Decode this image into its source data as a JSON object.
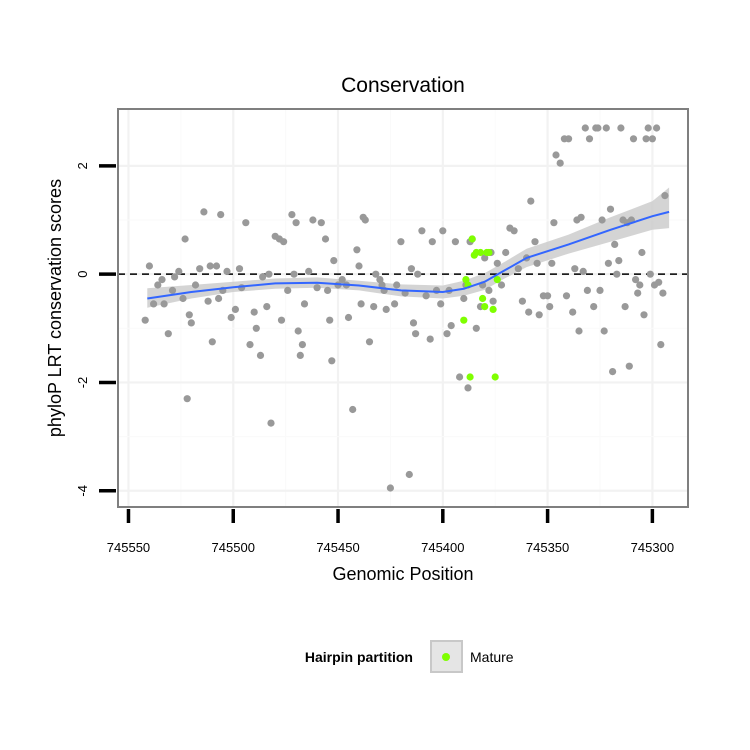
{
  "chart_data": {
    "type": "scatter",
    "title": "Conservation",
    "xlabel": "Genomic Position",
    "ylabel": "phyloP LRT conservation scores",
    "x_reversed": true,
    "xlim": [
      745555,
      745283
    ],
    "ylim": [
      -4.3,
      3.05
    ],
    "x_ticks": [
      745550,
      745500,
      745450,
      745400,
      745350,
      745300
    ],
    "x_tick_labels": [
      "745550",
      "745500",
      "745450",
      "745400",
      "745350",
      "745300"
    ],
    "y_ticks": [
      2,
      0,
      -2,
      -4
    ],
    "y_tick_labels": [
      "2",
      "0",
      "-2",
      "-4"
    ],
    "reference_line": {
      "y": 0,
      "style": "dashed"
    },
    "grid": true,
    "colors": {
      "point_other": "#999999",
      "point_mature": "#7fff00",
      "smooth_line": "#3366ff",
      "ribbon": "#cccccc",
      "panel_border": "#7f7f7f",
      "grid": "#f2f2f2"
    },
    "legend": {
      "title": "Hairpin partition",
      "placement": "bottom",
      "entries": [
        {
          "label": "Mature",
          "color": "#7fff00"
        }
      ]
    },
    "smooth": {
      "x": [
        745541,
        745520,
        745500,
        745480,
        745460,
        745440,
        745420,
        745400,
        745390,
        745380,
        745370,
        745360,
        745340,
        745320,
        745300,
        745292
      ],
      "y": [
        -0.45,
        -0.33,
        -0.24,
        -0.17,
        -0.16,
        -0.21,
        -0.3,
        -0.33,
        -0.27,
        -0.14,
        0.08,
        0.3,
        0.55,
        0.82,
        1.07,
        1.15
      ],
      "lower": [
        -0.62,
        -0.45,
        -0.33,
        -0.27,
        -0.25,
        -0.3,
        -0.41,
        -0.45,
        -0.4,
        -0.29,
        -0.07,
        0.13,
        0.38,
        0.6,
        0.82,
        0.85
      ],
      "upper": [
        -0.26,
        -0.2,
        -0.14,
        -0.08,
        -0.06,
        -0.12,
        -0.19,
        -0.21,
        -0.12,
        0.02,
        0.24,
        0.47,
        0.73,
        1.05,
        1.35,
        1.6
      ]
    },
    "series": [
      {
        "name": "Other",
        "color": "#999999",
        "points": [
          [
            745542,
            -0.85
          ],
          [
            745540,
            0.15
          ],
          [
            745538,
            -0.55
          ],
          [
            745536,
            -0.2
          ],
          [
            745534,
            -0.1
          ],
          [
            745533,
            -0.55
          ],
          [
            745531,
            -1.1
          ],
          [
            745529,
            -0.3
          ],
          [
            745528,
            -0.05
          ],
          [
            745526,
            0.05
          ],
          [
            745524,
            -0.45
          ],
          [
            745523,
            0.65
          ],
          [
            745522,
            -2.3
          ],
          [
            745521,
            -0.75
          ],
          [
            745520,
            -0.9
          ],
          [
            745518,
            -0.2
          ],
          [
            745516,
            0.1
          ],
          [
            745514,
            1.15
          ],
          [
            745512,
            -0.5
          ],
          [
            745511,
            0.15
          ],
          [
            745510,
            -1.25
          ],
          [
            745508,
            0.15
          ],
          [
            745507,
            -0.45
          ],
          [
            745506,
            1.1
          ],
          [
            745505,
            -0.3
          ],
          [
            745503,
            0.05
          ],
          [
            745501,
            -0.8
          ],
          [
            745499,
            -0.65
          ],
          [
            745497,
            0.1
          ],
          [
            745496,
            -0.25
          ],
          [
            745494,
            0.95
          ],
          [
            745492,
            -1.3
          ],
          [
            745490,
            -0.7
          ],
          [
            745489,
            -1.0
          ],
          [
            745487,
            -1.5
          ],
          [
            745486,
            -0.05
          ],
          [
            745484,
            -0.6
          ],
          [
            745483,
            0.0
          ],
          [
            745482,
            -2.75
          ],
          [
            745480,
            0.7
          ],
          [
            745478,
            0.65
          ],
          [
            745477,
            -0.85
          ],
          [
            745476,
            0.6
          ],
          [
            745474,
            -0.3
          ],
          [
            745472,
            1.1
          ],
          [
            745471,
            0.0
          ],
          [
            745470,
            0.95
          ],
          [
            745469,
            -1.05
          ],
          [
            745468,
            -1.5
          ],
          [
            745467,
            -1.3
          ],
          [
            745466,
            -0.55
          ],
          [
            745464,
            0.05
          ],
          [
            745462,
            1.0
          ],
          [
            745460,
            -0.25
          ],
          [
            745458,
            0.95
          ],
          [
            745456,
            0.65
          ],
          [
            745455,
            -0.3
          ],
          [
            745454,
            -0.85
          ],
          [
            745453,
            -1.6
          ],
          [
            745452,
            0.25
          ],
          [
            745450,
            -0.2
          ],
          [
            745448,
            -0.1
          ],
          [
            745446,
            -0.2
          ],
          [
            745445,
            -0.8
          ],
          [
            745443,
            -2.5
          ],
          [
            745441,
            0.45
          ],
          [
            745440,
            0.15
          ],
          [
            745439,
            -0.55
          ],
          [
            745438,
            1.05
          ],
          [
            745437,
            1.0
          ],
          [
            745435,
            -1.25
          ],
          [
            745433,
            -0.6
          ],
          [
            745432,
            0.0
          ],
          [
            745430,
            -0.1
          ],
          [
            745429,
            -0.2
          ],
          [
            745428,
            -0.3
          ],
          [
            745427,
            -0.65
          ],
          [
            745425,
            -3.95
          ],
          [
            745423,
            -0.55
          ],
          [
            745422,
            -0.2
          ],
          [
            745420,
            0.6
          ],
          [
            745418,
            -0.35
          ],
          [
            745416,
            -3.7
          ],
          [
            745415,
            0.1
          ],
          [
            745414,
            -0.9
          ],
          [
            745413,
            -1.1
          ],
          [
            745412,
            0.0
          ],
          [
            745410,
            0.8
          ],
          [
            745408,
            -0.4
          ],
          [
            745406,
            -1.2
          ],
          [
            745405,
            0.6
          ],
          [
            745403,
            -0.3
          ],
          [
            745401,
            -0.55
          ],
          [
            745400,
            0.8
          ],
          [
            745398,
            -1.1
          ],
          [
            745397,
            -0.3
          ],
          [
            745396,
            -0.95
          ],
          [
            745394,
            0.6
          ],
          [
            745392,
            -1.9
          ],
          [
            745390,
            -0.45
          ],
          [
            745389,
            -0.2
          ],
          [
            745388,
            -2.1
          ],
          [
            745387,
            0.6
          ],
          [
            745386,
            0.65
          ],
          [
            745384,
            -1.0
          ],
          [
            745382,
            -0.6
          ],
          [
            745381,
            -0.2
          ],
          [
            745380,
            0.3
          ],
          [
            745378,
            -0.3
          ],
          [
            745377,
            0.4
          ],
          [
            745376,
            -0.5
          ],
          [
            745374,
            0.2
          ],
          [
            745372,
            -0.2
          ],
          [
            745370,
            0.4
          ],
          [
            745368,
            0.85
          ],
          [
            745366,
            0.8
          ],
          [
            745364,
            0.1
          ],
          [
            745362,
            -0.5
          ],
          [
            745360,
            0.3
          ],
          [
            745359,
            -0.7
          ],
          [
            745358,
            1.35
          ],
          [
            745356,
            0.6
          ],
          [
            745355,
            0.2
          ],
          [
            745354,
            -0.75
          ],
          [
            745352,
            -0.4
          ],
          [
            745350,
            -0.4
          ],
          [
            745349,
            -0.6
          ],
          [
            745348,
            0.2
          ],
          [
            745347,
            0.95
          ],
          [
            745346,
            2.2
          ],
          [
            745344,
            2.05
          ],
          [
            745342,
            2.5
          ],
          [
            745341,
            -0.4
          ],
          [
            745340,
            2.5
          ],
          [
            745338,
            -0.7
          ],
          [
            745337,
            0.1
          ],
          [
            745336,
            1.0
          ],
          [
            745335,
            -1.05
          ],
          [
            745334,
            1.05
          ],
          [
            745333,
            0.05
          ],
          [
            745332,
            2.7
          ],
          [
            745331,
            -0.3
          ],
          [
            745330,
            2.5
          ],
          [
            745328,
            -0.6
          ],
          [
            745327,
            2.7
          ],
          [
            745326,
            2.7
          ],
          [
            745325,
            -0.3
          ],
          [
            745324,
            1.0
          ],
          [
            745323,
            -1.05
          ],
          [
            745322,
            2.7
          ],
          [
            745321,
            0.2
          ],
          [
            745320,
            1.2
          ],
          [
            745319,
            -1.8
          ],
          [
            745318,
            0.55
          ],
          [
            745317,
            0.0
          ],
          [
            745316,
            0.25
          ],
          [
            745315,
            2.7
          ],
          [
            745314,
            1.0
          ],
          [
            745313,
            -0.6
          ],
          [
            745312,
            0.95
          ],
          [
            745311,
            -1.7
          ],
          [
            745310,
            1.0
          ],
          [
            745309,
            2.5
          ],
          [
            745308,
            -0.1
          ],
          [
            745307,
            -0.35
          ],
          [
            745306,
            -0.2
          ],
          [
            745305,
            0.4
          ],
          [
            745304,
            -0.75
          ],
          [
            745303,
            2.5
          ],
          [
            745302,
            2.7
          ],
          [
            745301,
            0.0
          ],
          [
            745300,
            2.5
          ],
          [
            745299,
            -0.2
          ],
          [
            745298,
            2.7
          ],
          [
            745297,
            -0.15
          ],
          [
            745296,
            -1.3
          ],
          [
            745295,
            -0.35
          ],
          [
            745294,
            1.45
          ]
        ]
      },
      {
        "name": "Mature",
        "color": "#7fff00",
        "points": [
          [
            745390,
            -0.85
          ],
          [
            745389,
            -0.1
          ],
          [
            745388,
            -0.2
          ],
          [
            745387,
            -1.9
          ],
          [
            745386,
            0.65
          ],
          [
            745385,
            0.35
          ],
          [
            745384,
            0.4
          ],
          [
            745382,
            0.4
          ],
          [
            745381,
            -0.45
          ],
          [
            745380,
            -0.6
          ],
          [
            745379,
            0.4
          ],
          [
            745378,
            0.4
          ],
          [
            745376,
            -0.65
          ],
          [
            745375,
            -1.9
          ],
          [
            745374,
            -0.1
          ]
        ]
      }
    ]
  }
}
